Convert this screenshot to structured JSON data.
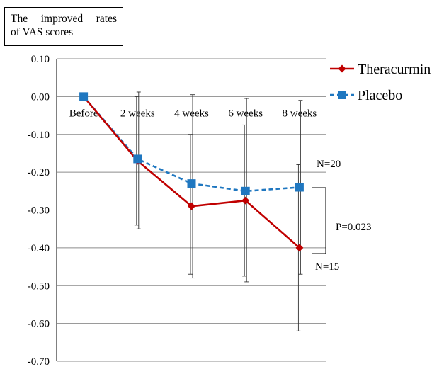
{
  "chart_data": {
    "type": "line",
    "title_lines": [
      "The improved rates",
      "of VAS scores"
    ],
    "categories": [
      "Before",
      "2 weeks",
      "4 weeks",
      "6 weeks",
      "8 weeks"
    ],
    "ylim": [
      -0.7,
      0.1
    ],
    "yticks": [
      "0.10",
      "0.00",
      "-0.10",
      "-0.20",
      "-0.30",
      "-0.40",
      "-0.50",
      "-0.60",
      "-0.70"
    ],
    "grid": true,
    "legend_position": "top-right",
    "series": [
      {
        "name": "Theracurmin",
        "color": "#c00000",
        "dashed": false,
        "marker": "diamond",
        "values": [
          0.0,
          -0.17,
          -0.29,
          -0.275,
          -0.4
        ],
        "error_low": [
          null,
          -0.34,
          -0.47,
          -0.475,
          -0.62
        ],
        "error_high": [
          null,
          0.0,
          -0.1,
          -0.075,
          -0.18
        ]
      },
      {
        "name": "Placebo",
        "color": "#1f77c0",
        "dashed": true,
        "marker": "square",
        "values": [
          0.0,
          -0.165,
          -0.23,
          -0.25,
          -0.24
        ],
        "error_low": [
          null,
          -0.35,
          -0.48,
          -0.49,
          -0.47
        ],
        "error_high": [
          null,
          0.012,
          0.005,
          -0.005,
          -0.01
        ]
      }
    ],
    "annotations": {
      "n_placebo": "N=20",
      "n_theracurmin": "N=15",
      "p_value": "P=0.023"
    }
  }
}
